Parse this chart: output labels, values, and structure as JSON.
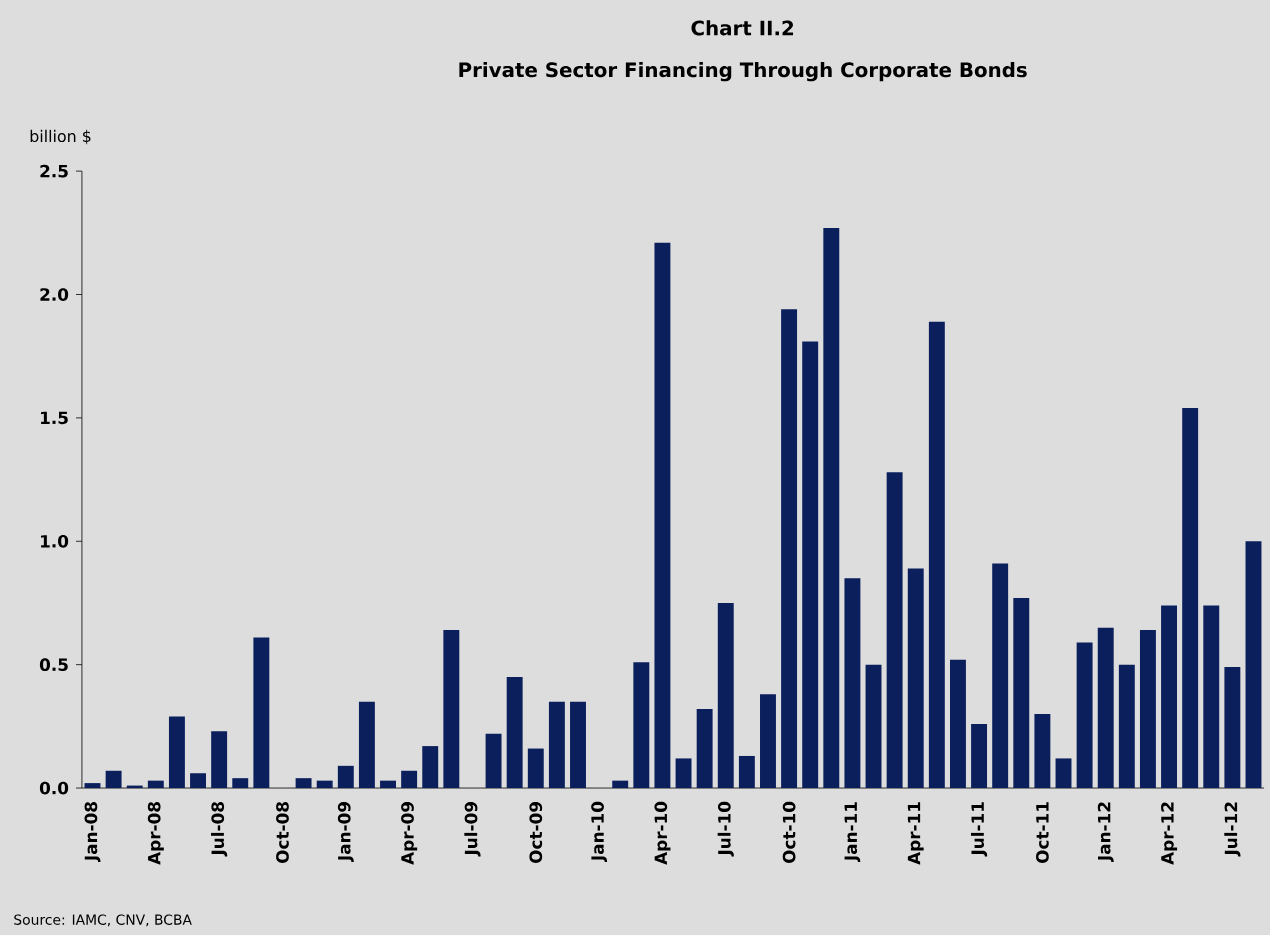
{
  "chart_data": {
    "type": "bar",
    "title": "Chart II.2",
    "subtitle": "Private Sector Financing Through Corporate Bonds",
    "ylabel": "billion $",
    "categories": [
      "Jan-08",
      null,
      null,
      "Apr-08",
      null,
      null,
      "Jul-08",
      null,
      null,
      "Oct-08",
      null,
      null,
      "Jan-09",
      null,
      null,
      "Apr-09",
      null,
      null,
      "Jul-09",
      null,
      null,
      "Oct-09",
      null,
      null,
      "Jan-10",
      null,
      null,
      "Apr-10",
      null,
      null,
      "Jul-10",
      null,
      null,
      "Oct-10",
      null,
      null,
      "Jan-11",
      null,
      null,
      "Apr-11",
      null,
      null,
      "Jul-11",
      null,
      null,
      "Oct-11",
      null,
      null,
      "Jan-12",
      null,
      null,
      "Apr-12",
      null,
      null,
      "Jul-12",
      null
    ],
    "values": [
      0.02,
      0.07,
      0.01,
      0.03,
      0.29,
      0.06,
      0.23,
      0.04,
      0.61,
      0,
      0.04,
      0.03,
      0.09,
      0.35,
      0.03,
      0.07,
      0.17,
      0.64,
      0,
      0.22,
      0.45,
      0.16,
      0.35,
      0.35,
      0,
      0.03,
      0.51,
      2.21,
      0.12,
      0.32,
      0.75,
      0.13,
      0.38,
      1.94,
      1.81,
      2.27,
      0.85,
      0.5,
      1.28,
      0.89,
      1.89,
      0.52,
      0.26,
      0.91,
      0.77,
      0.3,
      0.12,
      0.59,
      0.65,
      0.5,
      0.64,
      0.74,
      1.54,
      0.74,
      0.49,
      1.0
    ],
    "color": "#0a1f5c",
    "ylim": [
      0,
      2.5
    ],
    "yticks": [
      {
        "value": 0,
        "label": "0.0"
      },
      0.5,
      {
        "value": 1,
        "label": "1.0"
      },
      1.5,
      {
        "value": 2,
        "label": "2.0"
      },
      2.5
    ],
    "annotations": [
      "Source: IAMC, CNV, BCBA"
    ]
  }
}
